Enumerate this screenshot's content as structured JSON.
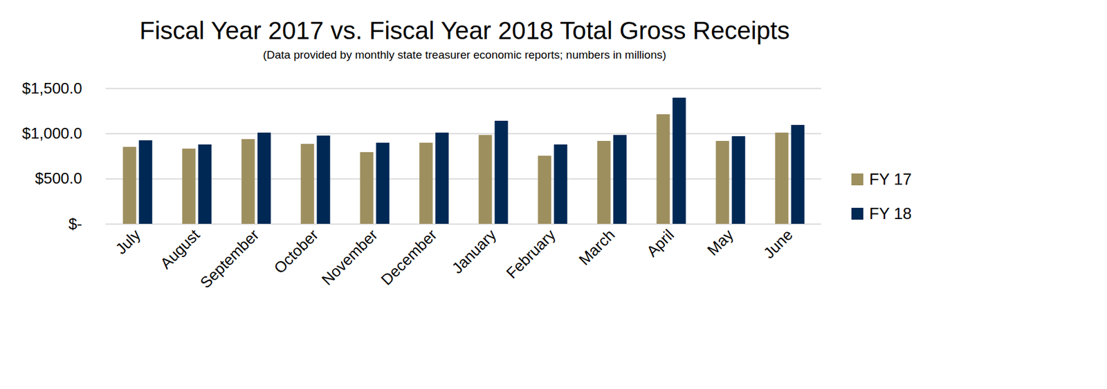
{
  "chart_data": {
    "type": "bar",
    "title": "Fiscal Year 2017 vs. Fiscal Year 2018 Total Gross Receipts",
    "subtitle": "(Data provided by monthly state treasurer economic reports; numbers in millions)",
    "categories": [
      "July",
      "August",
      "September",
      "October",
      "November",
      "December",
      "January",
      "February",
      "March",
      "April",
      "May",
      "June"
    ],
    "series": [
      {
        "name": "FY 17",
        "color": "#9e8f5f",
        "values": [
          851,
          832,
          937,
          884,
          793,
          897,
          983,
          753,
          917,
          1212,
          917,
          1009
        ]
      },
      {
        "name": "FY 18",
        "color": "#002855",
        "values": [
          924,
          878,
          1009,
          976,
          897,
          1009,
          1140,
          878,
          983,
          1395,
          969,
          1094
        ]
      }
    ],
    "ylim": [
      0,
      1500
    ],
    "yticks": [
      {
        "value": 0,
        "label": "$-"
      },
      {
        "value": 500,
        "label": "$500.0"
      },
      {
        "value": 1000,
        "label": "$1,000.0"
      },
      {
        "value": 1500,
        "label": "$1,500.0"
      }
    ],
    "grid": true,
    "legend": "right"
  }
}
